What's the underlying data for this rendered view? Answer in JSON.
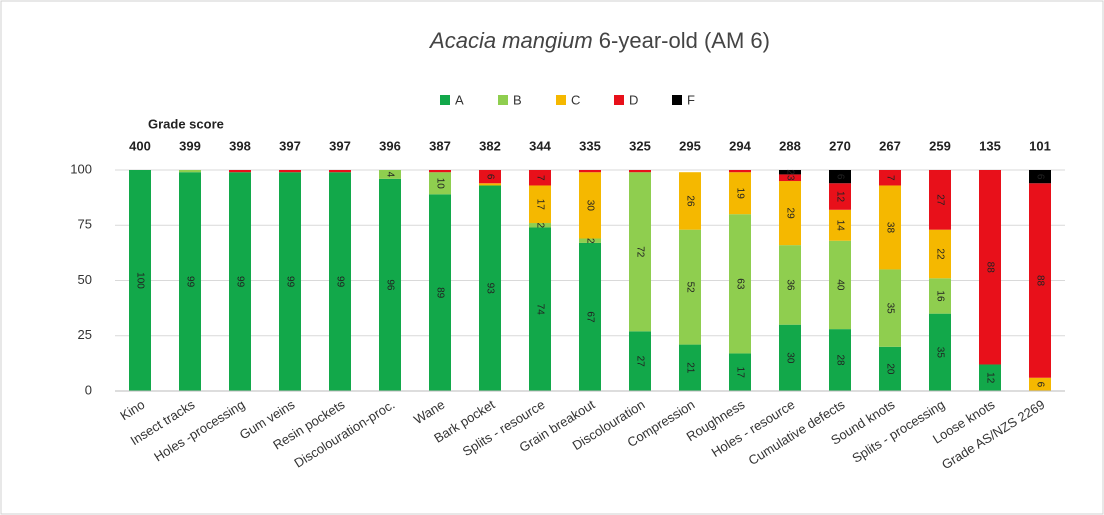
{
  "chart_data": {
    "type": "stacked_bar",
    "title_italic": "Acacia mangium",
    "title_rest": "6-year-old (AM 6)",
    "score_label": "Grade score",
    "categories": [
      "Kino",
      "Insect tracks",
      "Holes -processing",
      "Gum veins",
      "Resin pockets",
      "Discolouration-proc.",
      "Wane",
      "Bark pocket",
      "Splits - resource",
      "Grain breakout",
      "Discolouration",
      "Compression",
      "Roughness",
      "Holes - resource",
      "Cumulative defects",
      "Sound knots",
      "Splits - processing",
      "Loose knots",
      "Grade AS/NZS 2269"
    ],
    "scores": [
      400,
      399,
      398,
      397,
      397,
      396,
      387,
      382,
      344,
      335,
      325,
      295,
      294,
      288,
      270,
      267,
      259,
      135,
      101
    ],
    "series": [
      {
        "name": "A",
        "color": "#12a84a",
        "values": [
          100,
          99,
          99,
          99,
          99,
          96,
          89,
          93,
          74,
          67,
          27,
          21,
          17,
          30,
          28,
          20,
          35,
          12,
          0
        ]
      },
      {
        "name": "B",
        "color": "#8fce4f",
        "values": [
          0,
          1,
          0,
          0,
          0,
          4,
          10,
          0,
          2,
          2,
          72,
          52,
          63,
          36,
          40,
          35,
          16,
          0,
          0
        ]
      },
      {
        "name": "C",
        "color": "#f5b800",
        "values": [
          0,
          0,
          0,
          0,
          0,
          0,
          0,
          1,
          17,
          30,
          0,
          26,
          19,
          29,
          14,
          38,
          22,
          0,
          6
        ]
      },
      {
        "name": "D",
        "color": "#e8101a",
        "values": [
          0,
          0,
          1,
          1,
          1,
          0,
          1,
          6,
          7,
          1,
          1,
          0,
          1,
          3,
          12,
          7,
          27,
          88,
          88
        ]
      },
      {
        "name": "F",
        "color": "#000000",
        "values": [
          0,
          0,
          0,
          0,
          0,
          0,
          0,
          0,
          0,
          0,
          0,
          0,
          0,
          2,
          6,
          0,
          0,
          0,
          6
        ]
      }
    ],
    "ylim": [
      0,
      100
    ],
    "yticks": [
      0,
      25,
      50,
      75,
      100
    ],
    "grid": true,
    "legend": "top"
  }
}
